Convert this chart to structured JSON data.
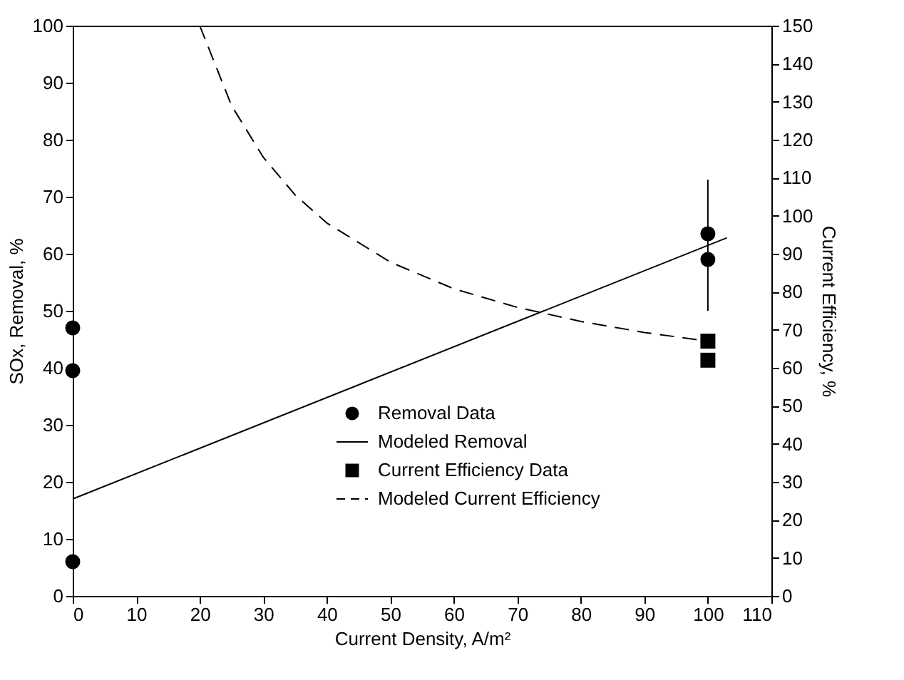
{
  "chart_data": {
    "type": "scatter",
    "xlabel": "Current Density, A/m²",
    "ylabel": "SOx, Removal, %",
    "y2label": "Current Efficiency, %",
    "xlim": [
      0,
      110
    ],
    "xticks": [
      0,
      10,
      20,
      30,
      40,
      50,
      60,
      70,
      80,
      90,
      100,
      110
    ],
    "ylim": [
      0,
      100
    ],
    "yticks": [
      0,
      10,
      20,
      30,
      40,
      50,
      60,
      70,
      80,
      90,
      100
    ],
    "y2lim": [
      0,
      150
    ],
    "y2ticks": [
      0,
      10,
      20,
      30,
      40,
      50,
      60,
      70,
      80,
      90,
      100,
      110,
      120,
      130,
      140,
      150
    ],
    "grid": false,
    "legend": "bottom",
    "series": [
      {
        "name": "Removal Data",
        "marker": "circle",
        "color": "#000000",
        "x": [
          0,
          0,
          0,
          100,
          100
        ],
        "values": [
          47,
          39.5,
          6,
          63.5,
          59
        ],
        "errors": [
          null,
          null,
          null,
          [
            50,
            73
          ],
          null
        ]
      },
      {
        "name": "Modeled Removal",
        "type": "line",
        "line_style": "solid",
        "color": "#000000",
        "x": [
          0,
          103
        ],
        "values": [
          17,
          62.8
        ]
      },
      {
        "name": "Current Efficiency Data",
        "marker": "square",
        "axis": "y2",
        "color": "#000000",
        "x": [
          100,
          100
        ],
        "values": [
          67,
          62
        ]
      },
      {
        "name": "Modeled Current Efficiency",
        "type": "line",
        "line_style": "dashed",
        "axis": "y2",
        "color": "#000000",
        "x": [
          20,
          25,
          30,
          35,
          40,
          50,
          60,
          70,
          80,
          90,
          100
        ],
        "values": [
          150,
          129,
          115.4,
          105.5,
          98.1,
          87.8,
          80.8,
          75.9,
          72.2,
          69.3,
          67
        ]
      }
    ]
  }
}
